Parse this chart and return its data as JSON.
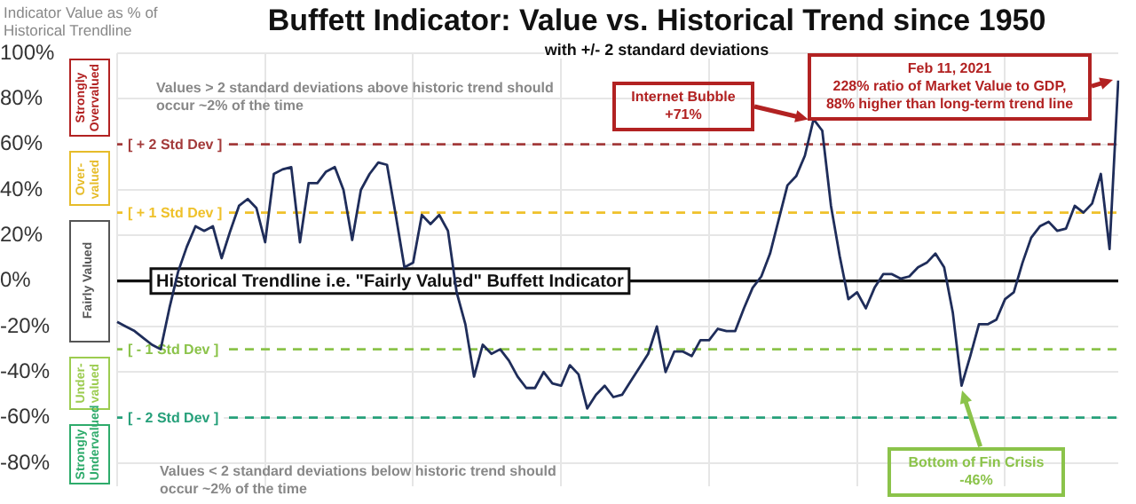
{
  "chart_data": {
    "type": "line",
    "title": "Buffett Indicator: Value vs. Historical Trend since 1950",
    "subtitle": "with +/- 2 standard deviations",
    "ylabel": "Indicator Value as % of Historical Trendline",
    "categories": [
      null,
      null,
      null,
      null,
      null,
      null,
      null,
      null,
      null,
      null,
      null,
      null,
      null,
      null,
      null,
      null,
      null,
      null,
      null,
      null,
      null,
      null,
      null,
      null,
      null,
      null,
      null,
      null,
      null,
      null,
      null,
      null,
      null,
      null,
      null,
      null,
      null,
      null,
      null,
      null,
      null,
      null,
      null,
      null,
      null,
      null,
      null,
      null,
      null,
      null,
      null,
      null,
      null,
      null,
      null,
      null,
      null,
      null,
      null,
      null,
      null,
      null,
      null,
      null,
      null,
      null,
      null,
      null,
      null,
      null,
      null,
      null,
      null,
      null,
      null,
      null,
      null,
      null,
      null,
      null,
      null,
      null,
      null,
      null,
      null,
      null,
      null,
      null,
      null,
      null,
      null,
      null,
      null,
      null,
      null,
      null,
      null,
      null,
      null,
      null,
      null,
      null,
      null,
      null,
      null,
      null,
      null,
      null,
      null,
      null,
      null,
      null,
      null,
      null,
      null,
      null
    ],
    "series": [
      {
        "color": "#1f2d5a",
        "values": [
          -18,
          -20,
          -22,
          -25,
          -28,
          -30,
          -12,
          4,
          15,
          24,
          22,
          24,
          10,
          22,
          33,
          36,
          32,
          17,
          47,
          49,
          50,
          17,
          43,
          43,
          48,
          50,
          40,
          18,
          40,
          47,
          52,
          51,
          29,
          6,
          8,
          29,
          25,
          29,
          22,
          -5,
          -19,
          -42,
          -28,
          -32,
          -30,
          -35,
          -42,
          -47,
          -47,
          -40,
          -45,
          -46,
          -37,
          -41,
          -56,
          -50,
          -46,
          -51,
          -50,
          -44,
          -38,
          -32,
          -20,
          -40,
          -31,
          -31,
          -33,
          -26,
          -26,
          -21,
          -22,
          -22,
          -12,
          -3,
          2,
          12,
          27,
          42,
          46,
          55,
          71,
          66,
          33,
          11,
          -8,
          -5,
          -12,
          -3,
          3,
          3,
          1,
          2,
          6,
          8,
          12,
          6,
          -14,
          -46,
          -33,
          -19,
          -19,
          -17,
          -8,
          -5,
          8,
          19,
          24,
          26,
          22,
          23,
          33,
          30,
          34,
          47,
          14,
          88
        ]
      }
    ],
    "ylim": [
      -90,
      100
    ],
    "yticks": [
      {
        "value": -80,
        "label": "-80%"
      },
      {
        "value": -60,
        "label": "-60%"
      },
      {
        "value": -40,
        "label": "-40%"
      },
      {
        "value": -20,
        "label": "-20%"
      },
      {
        "value": 0,
        "label": "0%"
      },
      {
        "value": 20,
        "label": "20%"
      },
      {
        "value": 40,
        "label": "40%"
      },
      {
        "value": 60,
        "label": "60%"
      },
      {
        "value": 80,
        "label": "80%"
      },
      {
        "value": 100,
        "label": "100%"
      }
    ],
    "tick_labels": "y",
    "grid": true,
    "legend": false,
    "ref_lines": [
      {
        "axis": "y",
        "value": 60,
        "label": "[ + 2 Std Dev ]",
        "color": "#a33a3a",
        "line_style": "dashed"
      },
      {
        "axis": "y",
        "value": 30,
        "label": "[ + 1 Std Dev ]",
        "color": "#efc12a",
        "line_style": "dashed"
      },
      {
        "axis": "y",
        "value": 0,
        "label": "Historical Trendline i.e. \"Fairly Valued\" Buffett Indicator",
        "color": "#111111",
        "line_style": "solid"
      },
      {
        "axis": "y",
        "value": -30,
        "label": "[ - 1 Std Dev ]",
        "color": "#8bc34a",
        "line_style": "dashed"
      },
      {
        "axis": "y",
        "value": -60,
        "label": "[ - 2 Std Dev ]",
        "color": "#26a07a",
        "line_style": "dashed"
      }
    ],
    "annotations": [
      "Strongly Overvalued",
      "Over-valued",
      "Fairly Valued",
      "Under-valued",
      "Strongly Undervalued",
      "Values > 2 standard deviations above historic trend should occur ~2% of the time",
      "Values < 2 standard deviations below historic trend should occur ~2% of the time",
      "Internet Bubble\n+71%",
      "Feb 11, 2021\n228% ratio of Market Value to GDP,\n88% higher than long-term trend line",
      "Bottom of Fin Crisis\n-46%"
    ]
  }
}
